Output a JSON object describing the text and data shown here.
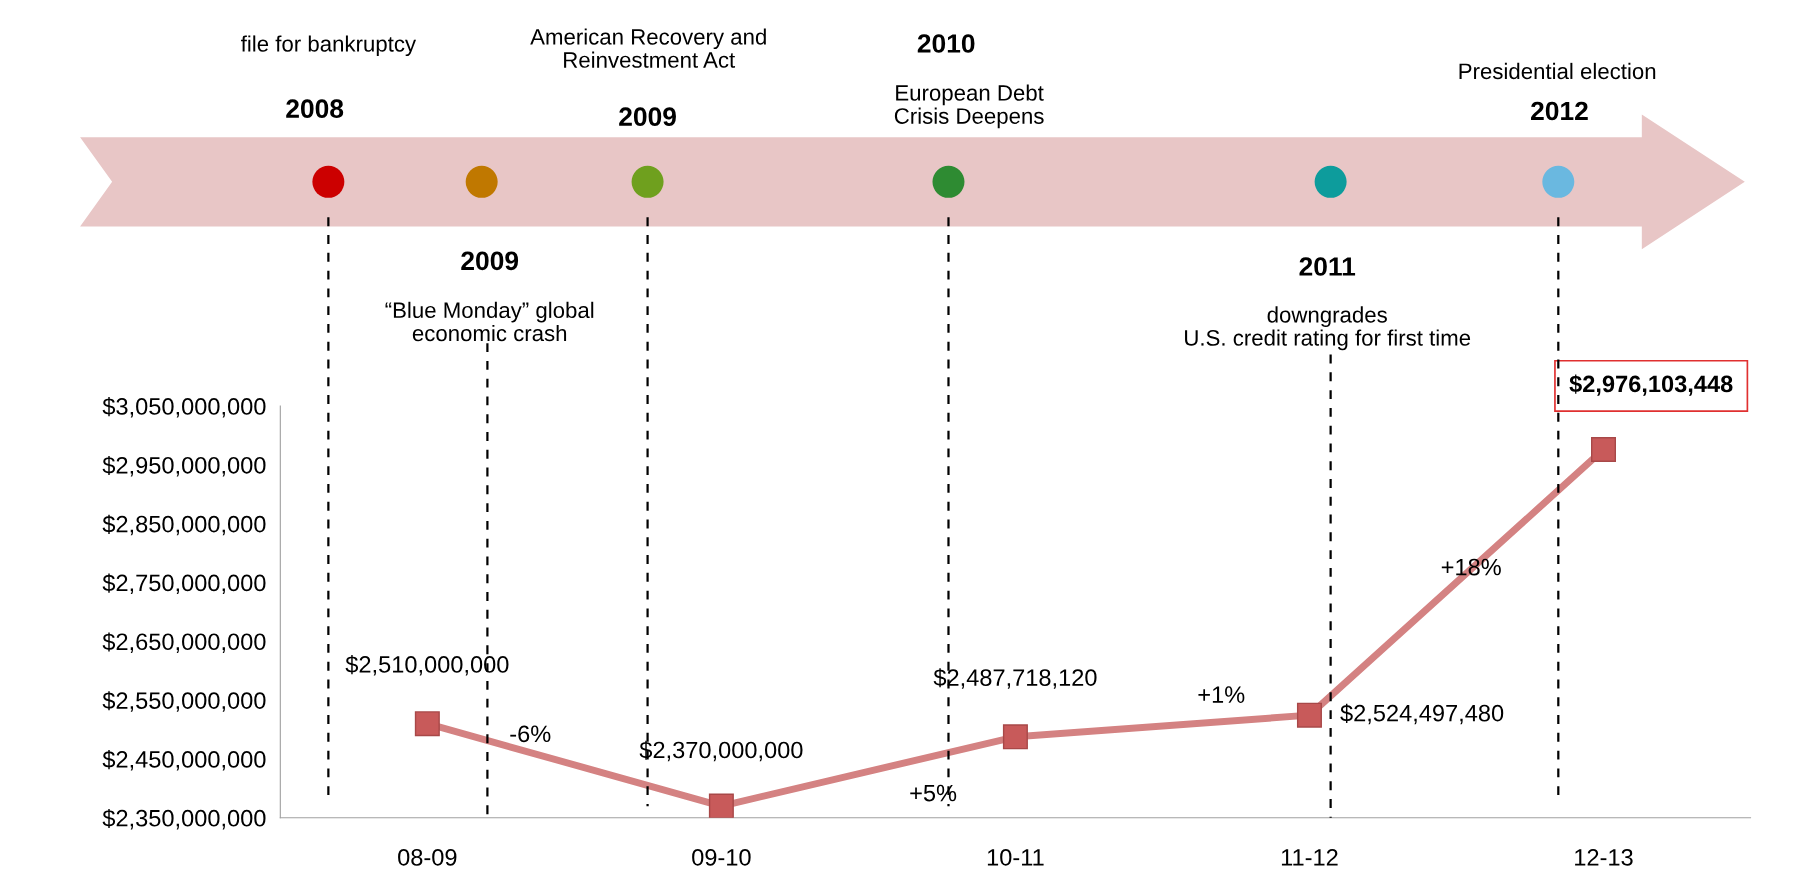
{
  "chart_data": {
    "type": "line",
    "categories": [
      "08-09",
      "09-10",
      "10-11",
      "11-12",
      "12-13"
    ],
    "series": [
      {
        "color": "#d48282",
        "values": [
          2510000000,
          2370000000,
          2487718120,
          2524497480,
          2976103448
        ],
        "value_labels": [
          "$2,510,000,000",
          "$2,370,000,000",
          "$2,487,718,120",
          "$2,524,497,480",
          "$2,976,103,448"
        ]
      }
    ],
    "ylim": [
      2350000000,
      3050000000
    ],
    "yticks": [
      {
        "value": 2350000000,
        "label": "$2,350,000,000"
      },
      {
        "value": 2450000000,
        "label": "$2,450,000,000"
      },
      {
        "value": 2550000000,
        "label": "$2,550,000,000"
      },
      {
        "value": 2650000000,
        "label": "$2,650,000,000"
      },
      {
        "value": 2750000000,
        "label": "$2,750,000,000"
      },
      {
        "value": 2850000000,
        "label": "$2,850,000,000"
      },
      {
        "value": 2950000000,
        "label": "$2,950,000,000"
      },
      {
        "value": 3050000000,
        "label": "$3,050,000,000"
      }
    ],
    "marker": "square",
    "grid": false,
    "annotations": [
      "-6%",
      "+5%",
      "+1%",
      "+18%",
      "file for bankruptcy",
      "2008",
      "American Recovery and\nReinvestment Act",
      "2009",
      "2010",
      "European Debt\nCrisis Deepens",
      "Presidential election",
      "2012",
      "2009",
      "“Blue Monday” global\neconomic crash",
      "2011",
      "downgrades\nU.S. credit rating for first time"
    ]
  }
}
